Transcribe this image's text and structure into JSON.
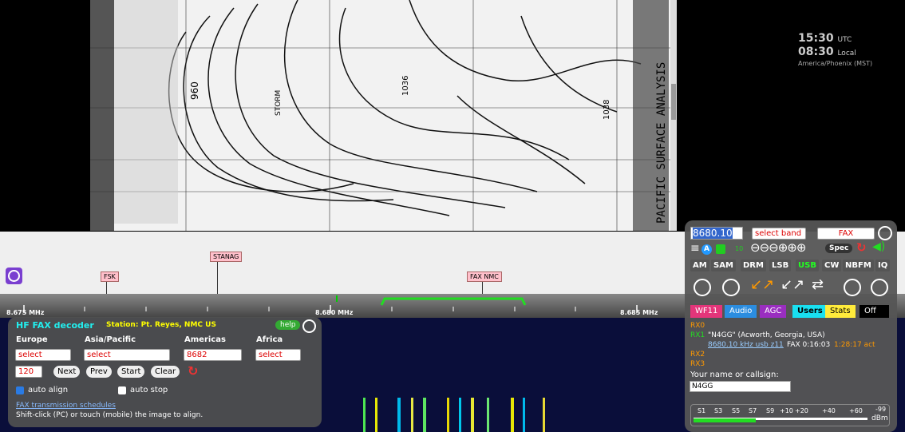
{
  "fax_image": {
    "title": "PACIFIC SURFACE ANALYSIS",
    "labels": [
      "STORM",
      "960",
      "1036",
      "1038"
    ]
  },
  "clock": {
    "utc_time": "15:30",
    "utc_label": "UTC",
    "local_time": "08:30",
    "local_label": "Local",
    "timezone": "America/Phoenix (MST)"
  },
  "band_bar": {
    "labels": [
      "STANAG",
      "FSK",
      "FAX NMC"
    ]
  },
  "scale": {
    "labels": [
      "8.675 MHz",
      "8.680 MHz",
      "8.685 MHz"
    ]
  },
  "fax_panel": {
    "title": "HF FAX decoder",
    "station": "Station: Pt. Reyes, NMC US",
    "help": "help",
    "regions": [
      "Europe",
      "Asia/Pacific",
      "Americas",
      "Africa"
    ],
    "selects": [
      "select",
      "select",
      "8682",
      "select"
    ],
    "lines": "120",
    "buttons": [
      "Next",
      "Prev",
      "Start",
      "Clear"
    ],
    "auto_align": "auto align",
    "auto_stop": "auto stop",
    "link": "FAX transmission schedules",
    "hint": "Shift-click (PC) or touch (mobile) the image to align."
  },
  "control_panel": {
    "frequency": "8680.10",
    "band": "select band",
    "mode": "FAX",
    "a_badge": "A",
    "wf_badge": "10",
    "spec": "Spec",
    "modes": [
      "AM",
      "SAM",
      "DRM",
      "LSB",
      "USB",
      "CW",
      "NBFM",
      "IQ"
    ],
    "tabs": [
      "WF11",
      "Audio",
      "AGC",
      "Users",
      "Stats",
      "Off"
    ],
    "channels": [
      "RX0",
      "RX1",
      "RX2",
      "RX3"
    ],
    "rx1_info": "\"N4GG\" (Acworth, Georgia, USA)",
    "rx1_link": "8680.10 kHz usb z11",
    "rx1_status": "FAX 0:16:03",
    "rx1_time": "1:28:17 act",
    "name_label": "Your name or callsign:",
    "name_value": "N4GG",
    "smeter_labels": [
      "S1",
      "S3",
      "S5",
      "S7",
      "S9",
      "+10",
      "+20",
      "+40",
      "+60"
    ],
    "smeter_reading": "-99",
    "smeter_unit": "dBm"
  }
}
